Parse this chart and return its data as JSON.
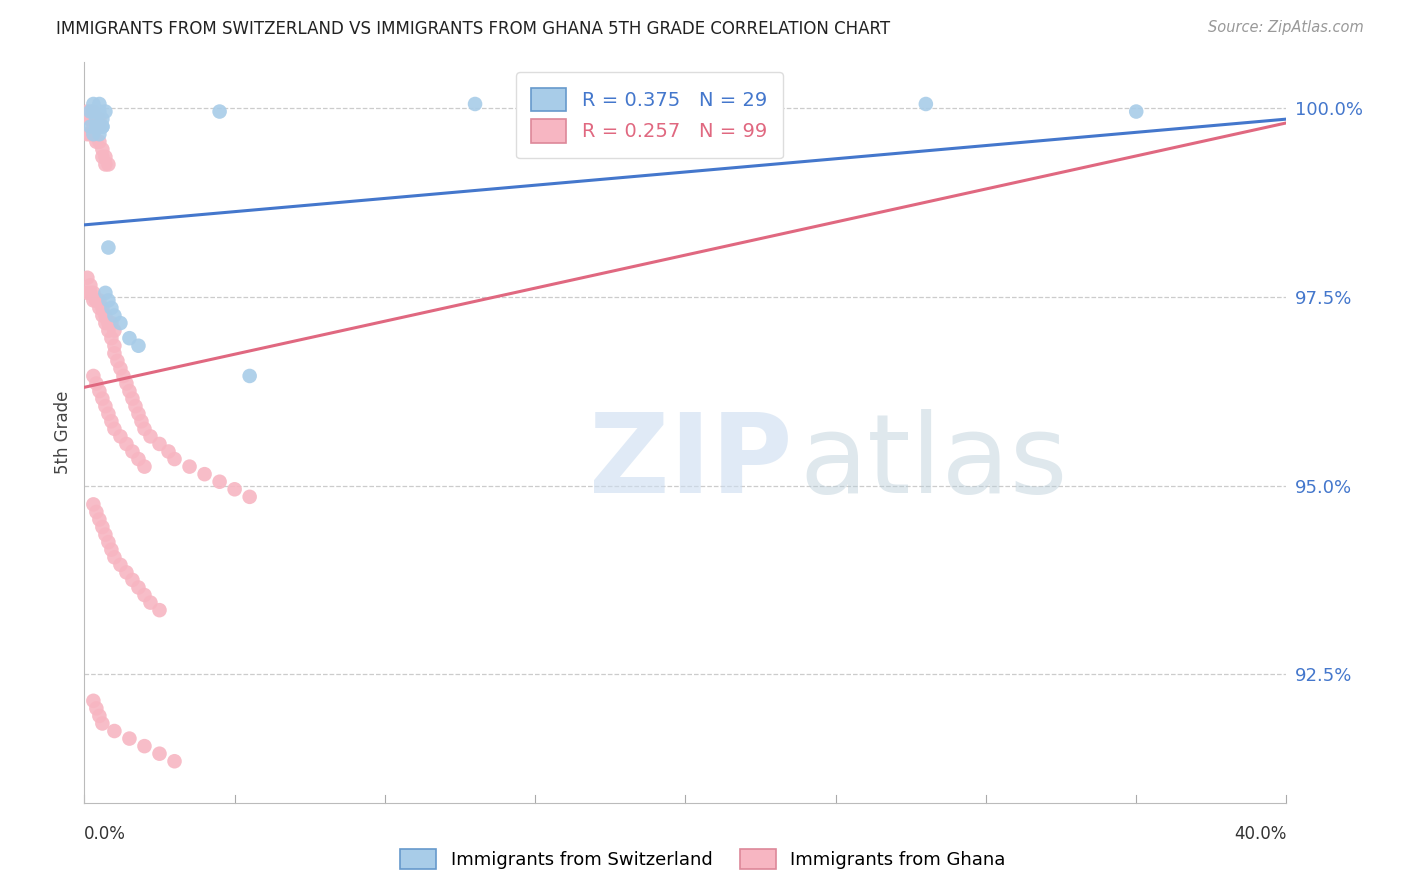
{
  "title": "IMMIGRANTS FROM SWITZERLAND VS IMMIGRANTS FROM GHANA 5TH GRADE CORRELATION CHART",
  "source": "Source: ZipAtlas.com",
  "ylabel": "5th Grade",
  "yaxis_labels": [
    "100.0%",
    "97.5%",
    "95.0%",
    "92.5%"
  ],
  "yaxis_values": [
    1.0,
    0.975,
    0.95,
    0.925
  ],
  "xmin": 0.0,
  "xmax": 0.4,
  "ymin": 0.908,
  "ymax": 1.006,
  "legend_R_blue": "R = 0.375",
  "legend_N_blue": "N = 29",
  "legend_R_pink": "R = 0.257",
  "legend_N_pink": "N = 99",
  "color_blue": "#a8cce8",
  "color_pink": "#f7b6c2",
  "trendline_blue": "#4477cc",
  "trendline_pink": "#e06880",
  "blue_trend_x": [
    0.0,
    0.4
  ],
  "blue_trend_y": [
    0.9845,
    0.9985
  ],
  "pink_trend_x": [
    0.0,
    0.4
  ],
  "pink_trend_y": [
    0.963,
    0.998
  ],
  "blue_x": [
    0.002,
    0.003,
    0.003,
    0.004,
    0.004,
    0.005,
    0.005,
    0.006,
    0.006,
    0.007,
    0.002,
    0.003,
    0.004,
    0.005,
    0.006,
    0.007,
    0.008,
    0.009,
    0.01,
    0.012,
    0.015,
    0.018,
    0.045,
    0.055,
    0.13,
    0.2,
    0.28,
    0.35,
    0.008
  ],
  "blue_y": [
    0.9995,
    0.9995,
    1.0005,
    0.9995,
    0.9985,
    1.0005,
    0.9995,
    0.9985,
    0.9975,
    0.9995,
    0.9975,
    0.9965,
    0.9975,
    0.9965,
    0.9975,
    0.9755,
    0.9745,
    0.9735,
    0.9725,
    0.9715,
    0.9695,
    0.9685,
    0.9995,
    0.9645,
    1.0005,
    0.9995,
    1.0005,
    0.9995,
    0.9815
  ],
  "pink_x": [
    0.001,
    0.002,
    0.002,
    0.003,
    0.003,
    0.003,
    0.004,
    0.004,
    0.005,
    0.005,
    0.001,
    0.002,
    0.003,
    0.004,
    0.005,
    0.006,
    0.006,
    0.007,
    0.007,
    0.008,
    0.001,
    0.002,
    0.003,
    0.004,
    0.005,
    0.006,
    0.007,
    0.008,
    0.009,
    0.01,
    0.001,
    0.002,
    0.003,
    0.004,
    0.005,
    0.006,
    0.007,
    0.008,
    0.009,
    0.01,
    0.01,
    0.011,
    0.012,
    0.013,
    0.014,
    0.015,
    0.016,
    0.017,
    0.018,
    0.019,
    0.02,
    0.022,
    0.025,
    0.028,
    0.03,
    0.035,
    0.04,
    0.045,
    0.05,
    0.055,
    0.003,
    0.004,
    0.005,
    0.006,
    0.007,
    0.008,
    0.009,
    0.01,
    0.012,
    0.014,
    0.016,
    0.018,
    0.02,
    0.022,
    0.025,
    0.003,
    0.004,
    0.005,
    0.006,
    0.007,
    0.008,
    0.009,
    0.01,
    0.012,
    0.014,
    0.016,
    0.018,
    0.02,
    0.003,
    0.004,
    0.005,
    0.006,
    0.01,
    0.015,
    0.02,
    0.025,
    0.03,
    0.002,
    0.003
  ],
  "pink_y": [
    0.9995,
    0.9985,
    0.9985,
    0.9985,
    0.9995,
    0.9985,
    0.9975,
    0.9985,
    0.9975,
    0.9985,
    0.9965,
    0.9965,
    0.9965,
    0.9955,
    0.9955,
    0.9945,
    0.9935,
    0.9935,
    0.9925,
    0.9925,
    0.9755,
    0.9755,
    0.9745,
    0.9745,
    0.9745,
    0.9735,
    0.9725,
    0.9715,
    0.9715,
    0.9705,
    0.9775,
    0.9765,
    0.9755,
    0.9745,
    0.9735,
    0.9725,
    0.9715,
    0.9705,
    0.9695,
    0.9685,
    0.9675,
    0.9665,
    0.9655,
    0.9645,
    0.9635,
    0.9625,
    0.9615,
    0.9605,
    0.9595,
    0.9585,
    0.9575,
    0.9565,
    0.9555,
    0.9545,
    0.9535,
    0.9525,
    0.9515,
    0.9505,
    0.9495,
    0.9485,
    0.9475,
    0.9465,
    0.9455,
    0.9445,
    0.9435,
    0.9425,
    0.9415,
    0.9405,
    0.9395,
    0.9385,
    0.9375,
    0.9365,
    0.9355,
    0.9345,
    0.9335,
    0.9645,
    0.9635,
    0.9625,
    0.9615,
    0.9605,
    0.9595,
    0.9585,
    0.9575,
    0.9565,
    0.9555,
    0.9545,
    0.9535,
    0.9525,
    0.9215,
    0.9205,
    0.9195,
    0.9185,
    0.9175,
    0.9165,
    0.9155,
    0.9145,
    0.9135,
    0.9985,
    0.9975
  ]
}
